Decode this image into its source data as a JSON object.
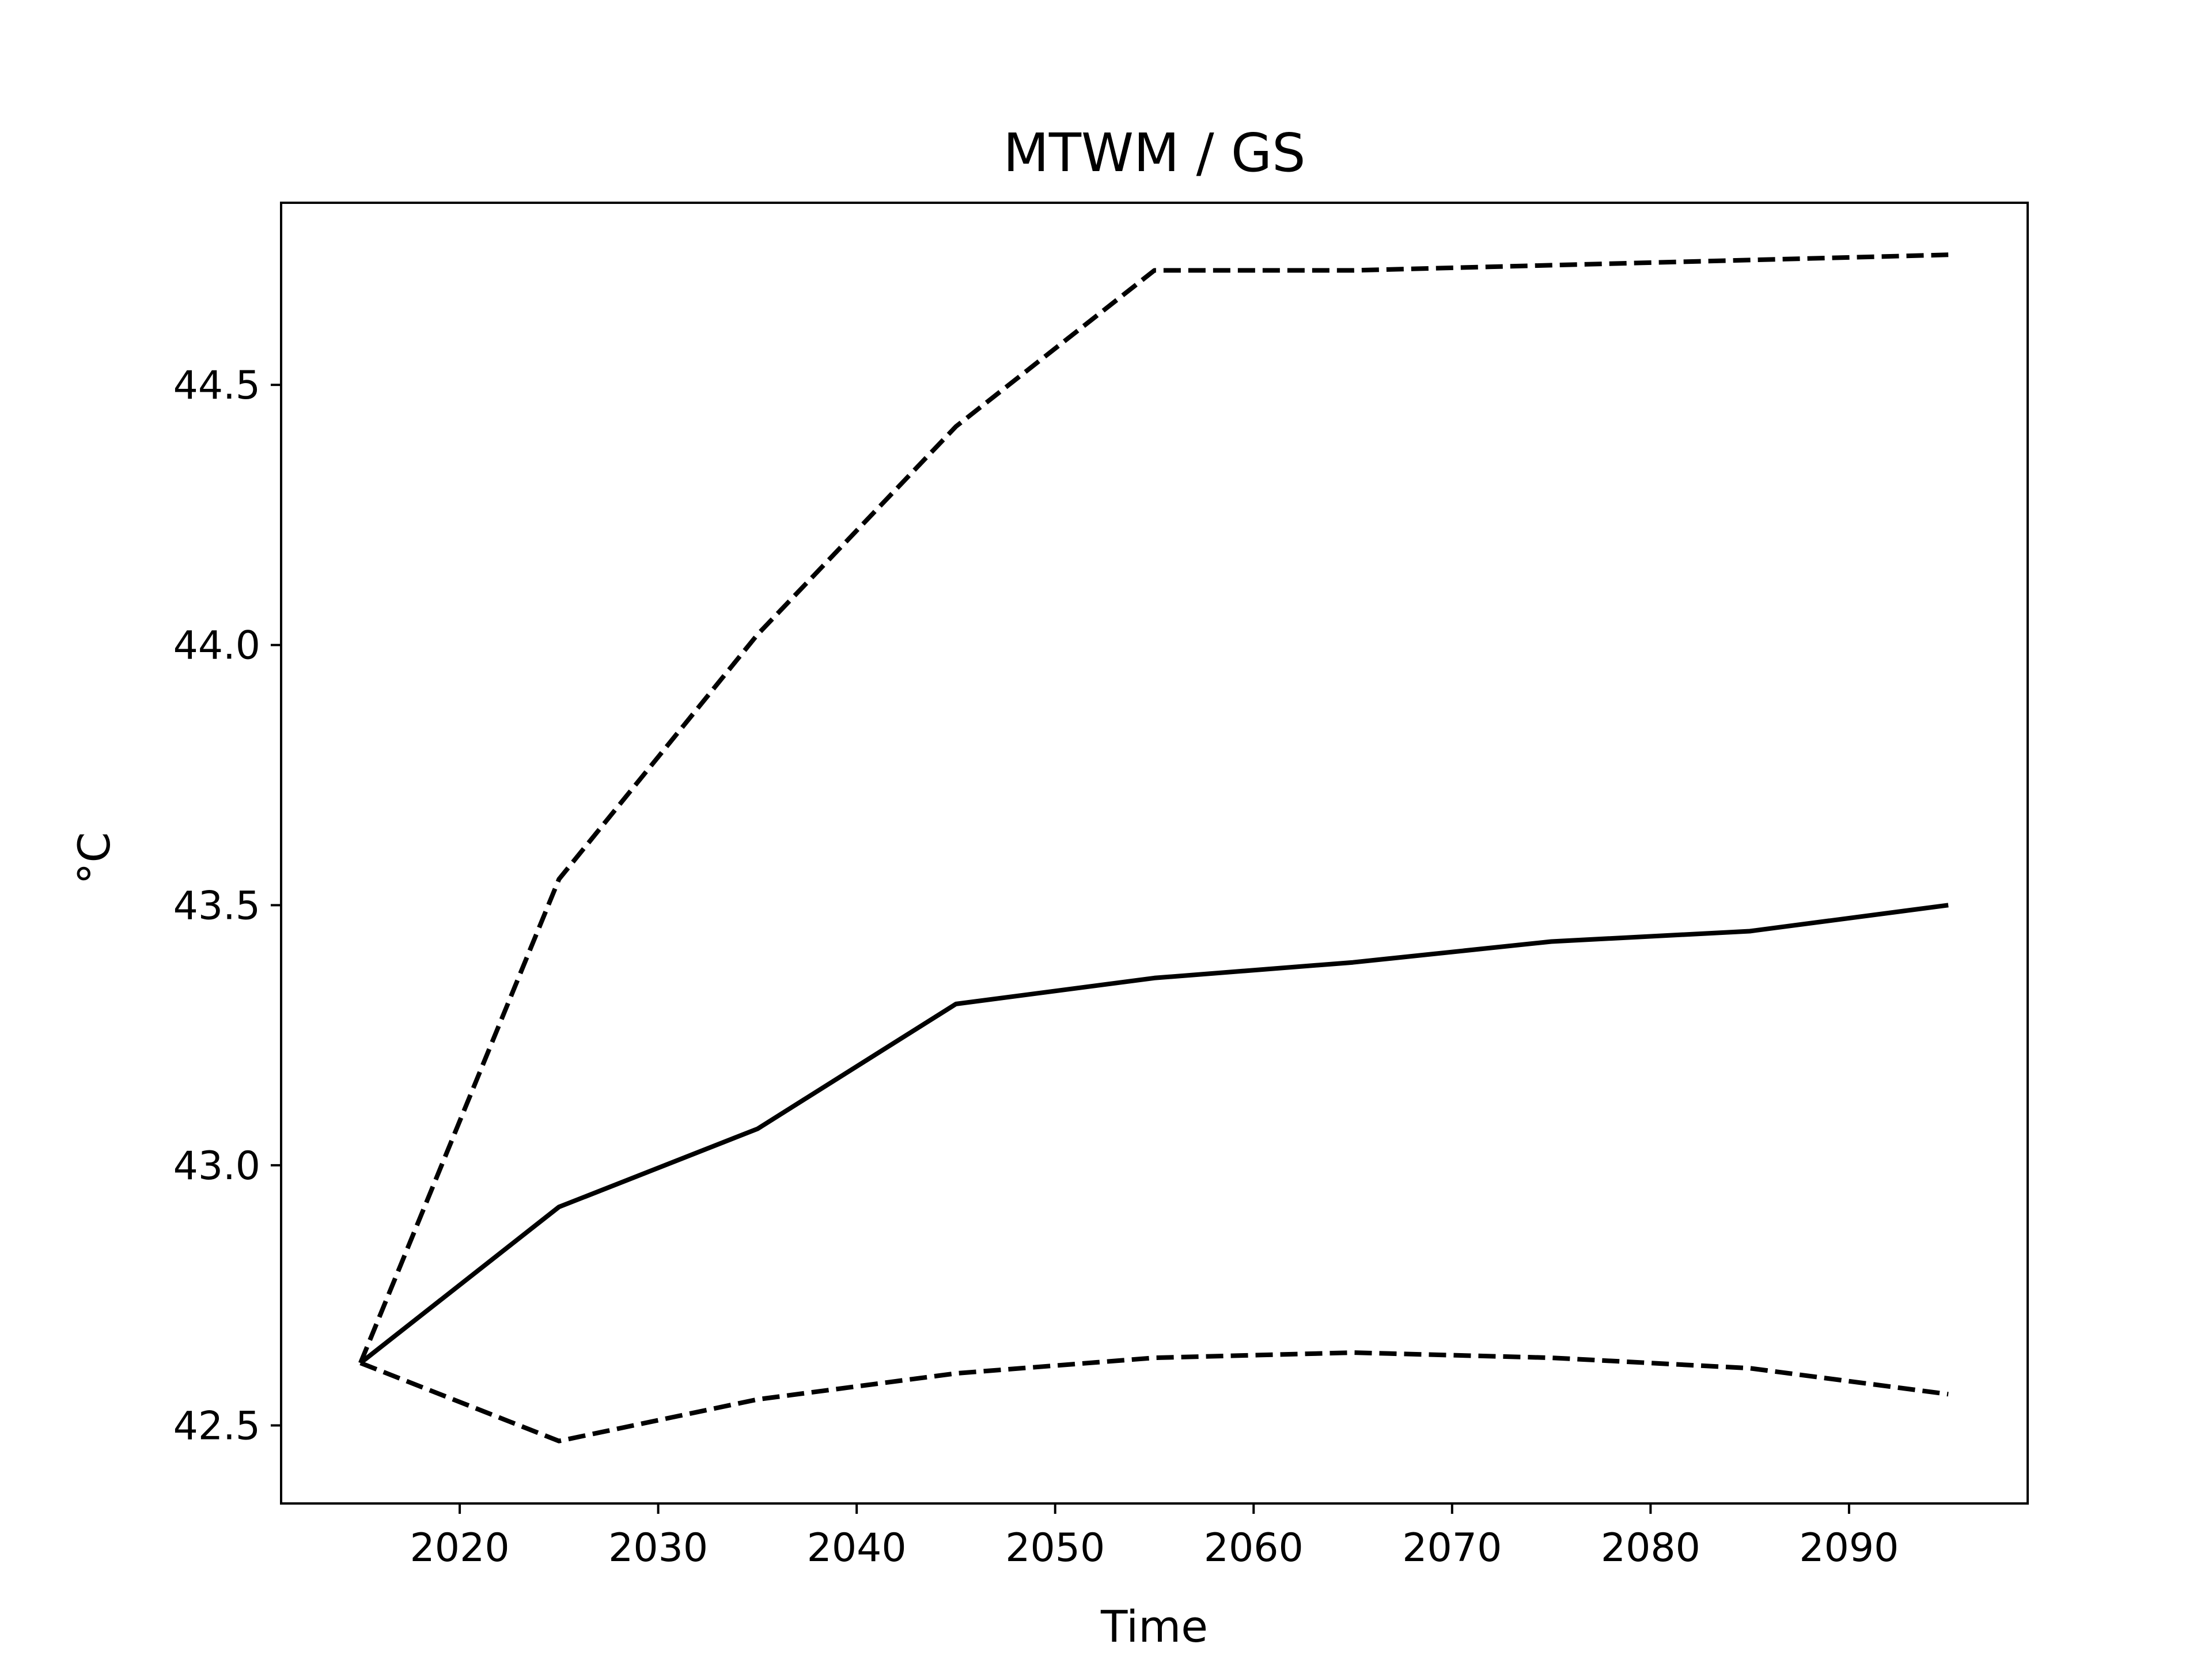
{
  "chart_data": {
    "type": "line",
    "title": "MTWM / GS",
    "xlabel": "Time",
    "ylabel": "°C",
    "xlim": [
      2011,
      2099
    ],
    "ylim": [
      42.35,
      44.85
    ],
    "x_ticks": [
      2020,
      2030,
      2040,
      2050,
      2060,
      2070,
      2080,
      2090
    ],
    "y_ticks": [
      42.5,
      43.0,
      43.5,
      44.0,
      44.5
    ],
    "y_tick_labels": [
      "42.5",
      "43.0",
      "43.5",
      "44.0",
      "44.5"
    ],
    "grid": false,
    "colors": {
      "line": "#000000",
      "frame": "#000000",
      "background": "#ffffff"
    },
    "x": [
      2015,
      2025,
      2035,
      2045,
      2055,
      2065,
      2075,
      2085,
      2095
    ],
    "series": [
      {
        "style": "dashed",
        "values": [
          42.62,
          43.55,
          44.02,
          44.42,
          44.72,
          44.72,
          44.73,
          44.74,
          44.75
        ]
      },
      {
        "style": "solid",
        "values": [
          42.62,
          42.92,
          43.07,
          43.31,
          43.36,
          43.39,
          43.43,
          43.45,
          43.5
        ]
      },
      {
        "style": "dashed",
        "values": [
          42.62,
          42.47,
          42.55,
          42.6,
          42.63,
          42.64,
          42.63,
          42.61,
          42.56
        ]
      }
    ]
  }
}
